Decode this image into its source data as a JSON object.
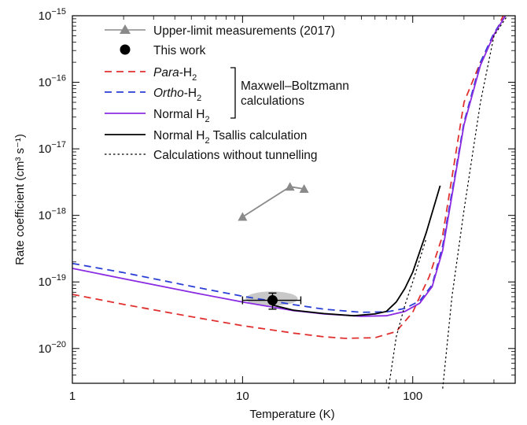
{
  "chart_data": {
    "type": "line",
    "xlabel": "Temperature (K)",
    "ylabel": "Rate coefficient (cm³ s⁻¹)",
    "xscale": "log",
    "yscale": "log",
    "xlim": [
      1,
      400
    ],
    "ylim": [
      3e-21,
      1e-15
    ],
    "x_ticks": [
      {
        "value": 1,
        "label": "1"
      },
      {
        "value": 10,
        "label": "10"
      },
      {
        "value": 100,
        "label": "100"
      }
    ],
    "y_ticks": [
      {
        "value": 1e-20,
        "base": "10",
        "exp": "−20"
      },
      {
        "value": 1e-19,
        "base": "10",
        "exp": "−19"
      },
      {
        "value": 1e-18,
        "base": "10",
        "exp": "−18"
      },
      {
        "value": 1e-17,
        "base": "10",
        "exp": "−17"
      },
      {
        "value": 1e-16,
        "base": "10",
        "exp": "−16"
      },
      {
        "value": 1e-15,
        "base": "10",
        "exp": "−15"
      }
    ],
    "grid": false,
    "legend_position": "top-left",
    "legend": {
      "upper_limit": "Upper-limit measurements (2017)",
      "this_work": "This work",
      "para_italic": "Para",
      "para_rest": "-H",
      "ortho_italic": "Ortho",
      "ortho_rest": "-H",
      "normal": "Normal H",
      "sub2": "2",
      "mb_line1": "Maxwell–Boltzmann",
      "mb_line2": "calculations",
      "tsallis_a": "Normal H",
      "tsallis_b": " Tsallis calculation",
      "no_tunnel": "Calculations without tunnelling"
    },
    "series": [
      {
        "key": "upper",
        "color": "#8a8a8a",
        "style": "solid-markers",
        "points": [
          [
            10,
            9.5e-19
          ],
          [
            19,
            2.7e-18
          ],
          [
            23,
            2.5e-18
          ]
        ]
      },
      {
        "key": "para",
        "color": "#e03030",
        "style": "dashed",
        "points": [
          [
            1,
            6.5e-20
          ],
          [
            2,
            4.6e-20
          ],
          [
            5,
            3e-20
          ],
          [
            10,
            2.2e-20
          ],
          [
            20,
            1.7e-20
          ],
          [
            30,
            1.5e-20
          ],
          [
            40,
            1.42e-20
          ],
          [
            60,
            1.45e-20
          ],
          [
            80,
            1.8e-20
          ],
          [
            100,
            3.5e-20
          ],
          [
            110,
            6e-20
          ],
          [
            125,
            1.2e-19
          ],
          [
            150,
            5e-19
          ],
          [
            200,
            5e-17
          ],
          [
            250,
            2e-16
          ],
          [
            300,
            5e-16
          ],
          [
            340,
            1e-15
          ]
        ]
      },
      {
        "key": "ortho",
        "color": "#2a3fd6",
        "style": "dashed",
        "points": [
          [
            1,
            1.9e-19
          ],
          [
            2,
            1.38e-19
          ],
          [
            5,
            8.6e-20
          ],
          [
            10,
            6.1e-20
          ],
          [
            20,
            4.55e-20
          ],
          [
            30,
            3.9e-20
          ],
          [
            50,
            3.5e-20
          ],
          [
            70,
            3.55e-20
          ],
          [
            90,
            4e-20
          ],
          [
            110,
            5.2e-20
          ],
          [
            130,
            9e-20
          ],
          [
            150,
            3.5e-19
          ],
          [
            200,
            2.5e-17
          ],
          [
            250,
            2e-16
          ],
          [
            300,
            5.5e-16
          ],
          [
            350,
            1e-15
          ]
        ]
      },
      {
        "key": "normal",
        "color": "#8a2be2",
        "style": "solid",
        "points": [
          [
            1,
            1.6e-19
          ],
          [
            2,
            1.12e-19
          ],
          [
            5,
            7e-20
          ],
          [
            10,
            5e-20
          ],
          [
            20,
            3.7e-20
          ],
          [
            30,
            3.3e-20
          ],
          [
            50,
            3.05e-20
          ],
          [
            70,
            3.1e-20
          ],
          [
            90,
            3.6e-20
          ],
          [
            110,
            4.8e-20
          ],
          [
            130,
            8.5e-20
          ],
          [
            150,
            3e-19
          ],
          [
            200,
            2.3e-17
          ],
          [
            250,
            1.8e-16
          ],
          [
            300,
            5.2e-16
          ],
          [
            350,
            1e-15
          ]
        ]
      },
      {
        "key": "tsallis",
        "color": "#000000",
        "style": "solid",
        "points": [
          [
            15,
            4.5e-20
          ],
          [
            20,
            3.75e-20
          ],
          [
            30,
            3.35e-20
          ],
          [
            45,
            3.1e-20
          ],
          [
            60,
            3.3e-20
          ],
          [
            70,
            3.6e-20
          ],
          [
            80,
            5e-20
          ],
          [
            90,
            8e-20
          ],
          [
            100,
            1.4e-19
          ],
          [
            120,
            5.5e-19
          ],
          [
            145,
            2.8e-18
          ]
        ]
      },
      {
        "key": "notunnel1",
        "color": "#000000",
        "style": "dotted",
        "points": [
          [
            72,
            2.5e-21
          ],
          [
            80,
            1.5e-20
          ],
          [
            90,
            4.5e-20
          ],
          [
            100,
            1e-19
          ],
          [
            110,
            2.2e-19
          ],
          [
            120,
            4.5e-19
          ]
        ]
      },
      {
        "key": "notunnel2",
        "color": "#000000",
        "style": "dotted",
        "points": [
          [
            150,
            2.5e-21
          ],
          [
            170,
            6e-20
          ],
          [
            200,
            1.2e-18
          ],
          [
            250,
            5e-17
          ],
          [
            300,
            5e-16
          ],
          [
            360,
            1e-15
          ]
        ]
      }
    ],
    "this_work": {
      "x": 15,
      "y": 5.3e-20,
      "x_err": [
        10,
        22
      ],
      "y_err": [
        3.9e-20,
        6.8e-20
      ],
      "color": "#000000"
    }
  }
}
